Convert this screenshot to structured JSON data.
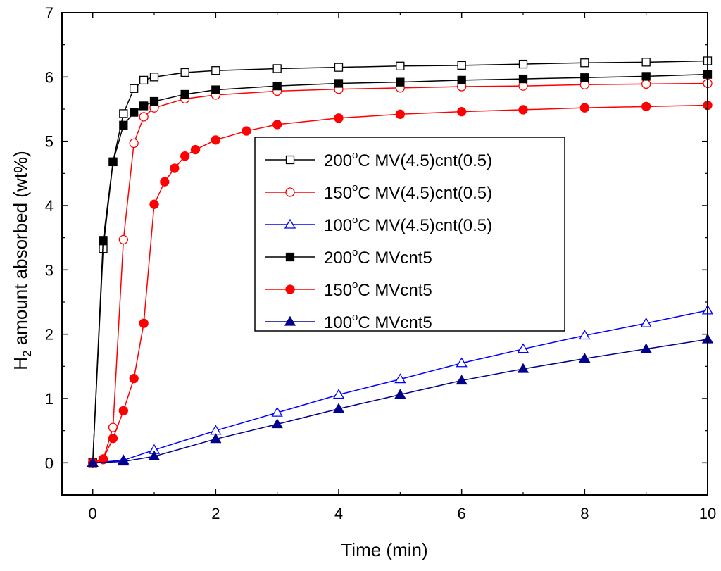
{
  "chart_data": {
    "type": "line",
    "title": "",
    "xlabel": "Time (min)",
    "ylabel": {
      "main": "H",
      "sub": "2",
      "rest": " amount absorbed (wt%)"
    },
    "xlim": [
      -0.5,
      10
    ],
    "ylim": [
      -0.5,
      7
    ],
    "x_ticks": [
      0,
      2,
      4,
      6,
      8,
      10
    ],
    "y_ticks": [
      0,
      1,
      2,
      3,
      4,
      5,
      6,
      7
    ],
    "grid": false,
    "legend_position": "center",
    "colors": {
      "black": "#000000",
      "red": "#ff0000",
      "blue": "#00008b"
    },
    "series": [
      {
        "name": {
          "temp": "200",
          "deg": "o",
          "rest": "C MV(4.5)cnt(0.5)"
        },
        "color": "#000000",
        "marker": "square",
        "filled": false,
        "x": [
          0,
          0.17,
          0.33,
          0.5,
          0.67,
          0.83,
          1.0,
          1.5,
          2.0,
          3.0,
          4.0,
          5.0,
          6.0,
          7.0,
          8.0,
          9.0,
          10.0
        ],
        "y": [
          0,
          3.33,
          4.68,
          5.43,
          5.82,
          5.95,
          6.0,
          6.07,
          6.1,
          6.13,
          6.15,
          6.17,
          6.18,
          6.2,
          6.22,
          6.23,
          6.25
        ]
      },
      {
        "name": {
          "temp": "150",
          "deg": "o",
          "rest": "C MV(4.5)cnt(0.5)"
        },
        "color": "#ff0000",
        "marker": "circle",
        "filled": false,
        "x": [
          0,
          0.17,
          0.33,
          0.5,
          0.67,
          0.83,
          1.0,
          1.5,
          2.0,
          3.0,
          4.0,
          5.0,
          6.0,
          7.0,
          8.0,
          9.0,
          10.0
        ],
        "y": [
          0,
          0.05,
          0.55,
          3.47,
          4.97,
          5.38,
          5.52,
          5.66,
          5.72,
          5.78,
          5.81,
          5.83,
          5.85,
          5.86,
          5.88,
          5.89,
          5.9
        ]
      },
      {
        "name": {
          "temp": "100",
          "deg": "o",
          "rest": "C MV(4.5)cnt(0.5)"
        },
        "color": "#0000ff",
        "marker": "triangle",
        "filled": false,
        "x": [
          0,
          0.5,
          1.0,
          2.0,
          3.0,
          4.0,
          5.0,
          6.0,
          7.0,
          8.0,
          9.0,
          10.0
        ],
        "y": [
          0,
          0.04,
          0.2,
          0.5,
          0.78,
          1.06,
          1.3,
          1.55,
          1.77,
          1.98,
          2.17,
          2.37
        ]
      },
      {
        "name": {
          "temp": "200",
          "deg": "o",
          "rest": "C MVcnt5"
        },
        "color": "#000000",
        "marker": "square",
        "filled": true,
        "x": [
          0,
          0.17,
          0.33,
          0.5,
          0.67,
          0.83,
          1.0,
          1.5,
          2.0,
          3.0,
          4.0,
          5.0,
          6.0,
          7.0,
          8.0,
          9.0,
          10.0
        ],
        "y": [
          0,
          3.46,
          4.68,
          5.25,
          5.45,
          5.55,
          5.62,
          5.73,
          5.8,
          5.86,
          5.9,
          5.92,
          5.95,
          5.97,
          5.99,
          6.01,
          6.04
        ]
      },
      {
        "name": {
          "temp": "150",
          "deg": "o",
          "rest": "C MVcnt5"
        },
        "color": "#ff0000",
        "marker": "circle",
        "filled": true,
        "x": [
          0,
          0.17,
          0.33,
          0.5,
          0.67,
          0.83,
          1.0,
          1.17,
          1.33,
          1.5,
          1.67,
          2.0,
          2.5,
          3.0,
          4.0,
          5.0,
          6.0,
          7.0,
          8.0,
          9.0,
          10.0
        ],
        "y": [
          0,
          0.06,
          0.38,
          0.81,
          1.31,
          2.17,
          4.02,
          4.37,
          4.58,
          4.77,
          4.87,
          5.02,
          5.16,
          5.26,
          5.36,
          5.42,
          5.46,
          5.49,
          5.52,
          5.54,
          5.56
        ]
      },
      {
        "name": {
          "temp": "100",
          "deg": "o",
          "rest": "C MVcnt5"
        },
        "color": "#00008b",
        "marker": "triangle",
        "filled": true,
        "x": [
          0,
          0.5,
          1.0,
          2.0,
          3.0,
          4.0,
          5.0,
          6.0,
          7.0,
          8.0,
          9.0,
          10.0
        ],
        "y": [
          0,
          0.02,
          0.1,
          0.37,
          0.6,
          0.84,
          1.06,
          1.28,
          1.46,
          1.62,
          1.77,
          1.92
        ]
      }
    ]
  }
}
